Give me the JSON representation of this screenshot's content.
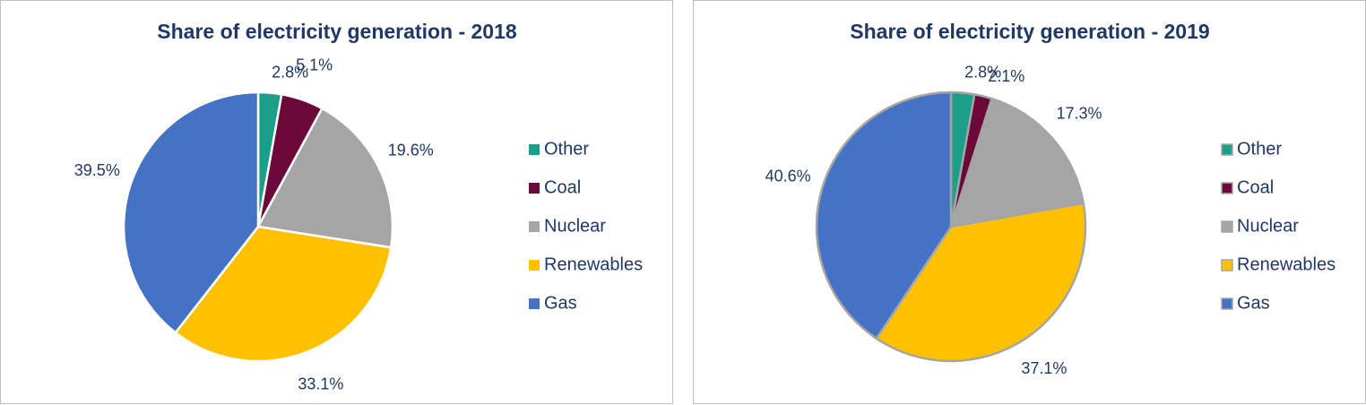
{
  "chart_data": [
    {
      "type": "pie",
      "title": "Share of electricity generation - 2018",
      "categories": [
        "Other",
        "Coal",
        "Nuclear",
        "Renewables",
        "Gas"
      ],
      "values": [
        2.8,
        5.1,
        19.6,
        33.1,
        39.5
      ],
      "value_labels": [
        "2.8%",
        "5.1%",
        "19.6%",
        "33.1%",
        "39.5%"
      ],
      "colors": [
        "#1b9e8a",
        "#6b0a3a",
        "#a5a5a5",
        "#ffc000",
        "#4472c4"
      ],
      "edgecolor": "#ffffff",
      "legend": "right"
    },
    {
      "type": "pie",
      "title": "Share of electricity generation - 2019",
      "categories": [
        "Other",
        "Coal",
        "Nuclear",
        "Renewables",
        "Gas"
      ],
      "values": [
        2.8,
        2.1,
        17.3,
        37.1,
        40.6
      ],
      "value_labels": [
        "2.8%",
        "2.1%",
        "17.3%",
        "37.1%",
        "40.6%"
      ],
      "colors": [
        "#1b9e8a",
        "#6b0a3a",
        "#a5a5a5",
        "#ffc000",
        "#4472c4"
      ],
      "edgecolor": "#a5a5a5",
      "legend": "right"
    }
  ]
}
